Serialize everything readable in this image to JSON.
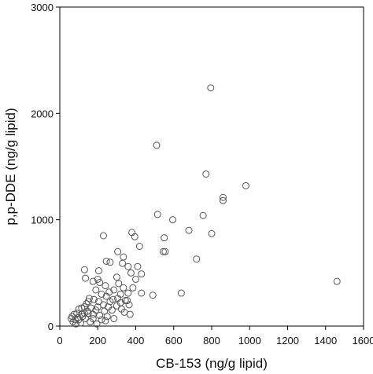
{
  "chart_data": {
    "type": "scatter",
    "title": "",
    "xlabel": "CB-153 (ng/g lipid)",
    "ylabel": "p,p-DDE (ng/g lipid)",
    "xlim": [
      0,
      1600
    ],
    "ylim": [
      0,
      3000
    ],
    "xticks": [
      "0",
      "200",
      "400",
      "600",
      "800",
      "1000",
      "1200",
      "1400",
      "1600"
    ],
    "yticks": [
      "0",
      "1000",
      "2000",
      "3000"
    ],
    "grid": false,
    "legend": "none",
    "marker": "open-circle",
    "colors": {
      "marker": "#555555",
      "axis": "#000000"
    },
    "points": [
      [
        795,
        2240
      ],
      [
        510,
        1700
      ],
      [
        770,
        1430
      ],
      [
        860,
        1210
      ],
      [
        860,
        1180
      ],
      [
        980,
        1320
      ],
      [
        515,
        1050
      ],
      [
        755,
        1040
      ],
      [
        595,
        1000
      ],
      [
        680,
        900
      ],
      [
        800,
        870
      ],
      [
        1460,
        420
      ],
      [
        550,
        830
      ],
      [
        545,
        700
      ],
      [
        555,
        700
      ],
      [
        720,
        630
      ],
      [
        640,
        310
      ],
      [
        490,
        290
      ],
      [
        380,
        880
      ],
      [
        395,
        840
      ],
      [
        420,
        750
      ],
      [
        230,
        850
      ],
      [
        245,
        610
      ],
      [
        265,
        600
      ],
      [
        305,
        700
      ],
      [
        335,
        650
      ],
      [
        330,
        590
      ],
      [
        360,
        560
      ],
      [
        410,
        560
      ],
      [
        375,
        500
      ],
      [
        430,
        490
      ],
      [
        400,
        440
      ],
      [
        430,
        310
      ],
      [
        130,
        530
      ],
      [
        135,
        450
      ],
      [
        175,
        420
      ],
      [
        205,
        520
      ],
      [
        200,
        440
      ],
      [
        210,
        410
      ],
      [
        240,
        380
      ],
      [
        190,
        340
      ],
      [
        260,
        320
      ],
      [
        300,
        460
      ],
      [
        310,
        400
      ],
      [
        335,
        360
      ],
      [
        285,
        340
      ],
      [
        320,
        300
      ],
      [
        360,
        310
      ],
      [
        385,
        360
      ],
      [
        355,
        240
      ],
      [
        320,
        220
      ],
      [
        280,
        250
      ],
      [
        245,
        280
      ],
      [
        220,
        300
      ],
      [
        205,
        230
      ],
      [
        180,
        250
      ],
      [
        155,
        260
      ],
      [
        140,
        210
      ],
      [
        130,
        180
      ],
      [
        115,
        170
      ],
      [
        100,
        160
      ],
      [
        90,
        120
      ],
      [
        75,
        110
      ],
      [
        65,
        90
      ],
      [
        60,
        70
      ],
      [
        70,
        40
      ],
      [
        85,
        20
      ],
      [
        100,
        60
      ],
      [
        110,
        30
      ],
      [
        120,
        90
      ],
      [
        135,
        70
      ],
      [
        150,
        120
      ],
      [
        160,
        40
      ],
      [
        175,
        110
      ],
      [
        190,
        150
      ],
      [
        210,
        100
      ],
      [
        230,
        200
      ],
      [
        255,
        180
      ],
      [
        275,
        150
      ],
      [
        300,
        190
      ],
      [
        325,
        160
      ],
      [
        340,
        130
      ],
      [
        365,
        200
      ],
      [
        285,
        70
      ],
      [
        250,
        90
      ],
      [
        220,
        60
      ],
      [
        195,
        20
      ],
      [
        175,
        70
      ],
      [
        145,
        140
      ],
      [
        115,
        110
      ],
      [
        95,
        80
      ],
      [
        80,
        60
      ],
      [
        150,
        230
      ],
      [
        165,
        170
      ],
      [
        200,
        180
      ],
      [
        235,
        140
      ],
      [
        265,
        230
      ],
      [
        305,
        260
      ],
      [
        345,
        240
      ],
      [
        370,
        110
      ],
      [
        240,
        50
      ],
      [
        130,
        120
      ]
    ]
  }
}
